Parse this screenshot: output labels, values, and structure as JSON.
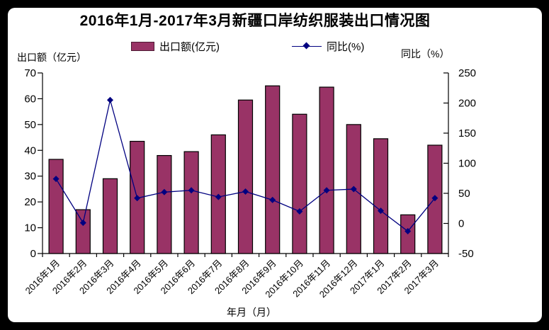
{
  "title": "2016年1月-2017年3月新疆口岸纺织服装出口情况图",
  "legend": {
    "bar_label": "出口额(亿元)",
    "line_label": "同比(%)"
  },
  "axis_labels": {
    "left": "出口额（亿元）",
    "right": "同比（%）",
    "x": "年月（月）"
  },
  "colors": {
    "bar_fill": "#993366",
    "bar_border": "#000000",
    "line": "#000080",
    "text": "#000000",
    "panel": "#ffffff",
    "frame": "#000000"
  },
  "chart_data": {
    "type": "bar",
    "subtype": "bar+line combo, dual axis",
    "title": "2016年1月-2017年3月新疆口岸纺织服装出口情况图",
    "xlabel": "年月（月）",
    "ylabel_left": "出口额（亿元）",
    "ylabel_right": "同比（%）",
    "grid": false,
    "legend_position": "top",
    "categories": [
      "2016年1月",
      "2016年2月",
      "2016年3月",
      "2016年4月",
      "2016年5月",
      "2016年6月",
      "2016年7月",
      "2016年8月",
      "2016年9月",
      "2016年10月",
      "2016年11月",
      "2016年12月",
      "2017年1月",
      "2017年2月",
      "2017年3月"
    ],
    "series": [
      {
        "name": "出口额(亿元)",
        "type": "bar",
        "axis": "left",
        "values": [
          36.5,
          17,
          29,
          43.5,
          38,
          39.5,
          46,
          59.5,
          65,
          54,
          64.5,
          50,
          44.5,
          15,
          42
        ]
      },
      {
        "name": "同比(%)",
        "type": "line",
        "axis": "right",
        "values": [
          74,
          1,
          205,
          42,
          52,
          55,
          44,
          53,
          39,
          20,
          55,
          57,
          21,
          -13,
          42
        ]
      }
    ],
    "left_axis": {
      "min": 0,
      "max": 70,
      "step": 10,
      "ticks": [
        0,
        10,
        20,
        30,
        40,
        50,
        60,
        70
      ]
    },
    "right_axis": {
      "min": -50,
      "max": 250,
      "step": 50,
      "ticks": [
        -50,
        0,
        50,
        100,
        150,
        200,
        250
      ]
    }
  }
}
